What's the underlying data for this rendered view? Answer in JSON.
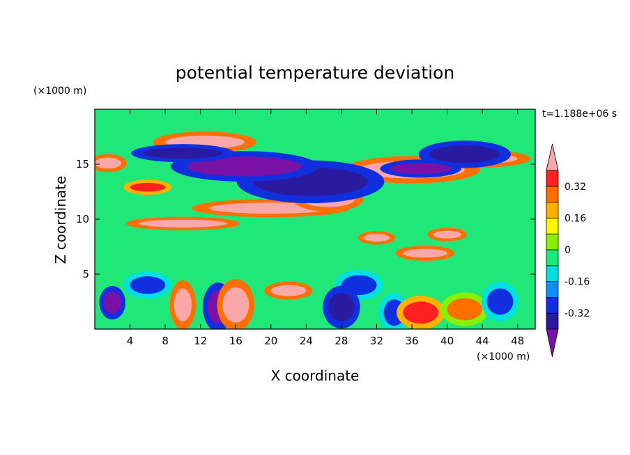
{
  "chart_data": {
    "type": "heatmap",
    "title": "potential temperature deviation",
    "time_label": "t=1.188e+06 s",
    "xlabel": "X coordinate",
    "ylabel": "Z coordinate",
    "x_unit": "(×1000 m)",
    "y_unit": "(×1000 m)",
    "xlim": [
      0,
      50
    ],
    "ylim": [
      0,
      20
    ],
    "x_ticks": [
      "4",
      "8",
      "12",
      "16",
      "20",
      "24",
      "28",
      "32",
      "36",
      "40",
      "44",
      "48"
    ],
    "y_ticks": [
      "5",
      "10",
      "15"
    ],
    "colorbar": {
      "levels": [
        -0.48,
        -0.4,
        -0.32,
        -0.24,
        -0.16,
        -0.08,
        0,
        0.08,
        0.16,
        0.24,
        0.32,
        0.4,
        0.48
      ],
      "colors": [
        "#7b12a8",
        "#2a1aa0",
        "#1030e0",
        "#0a90ff",
        "#00e0e0",
        "#20e878",
        "#88f000",
        "#f8f800",
        "#ffb000",
        "#ff7000",
        "#ff2020",
        "#f8a8a8"
      ],
      "labels": [
        "0.32",
        "0.16",
        "0",
        "-0.16",
        "-0.32"
      ],
      "label_values": [
        0.32,
        0.16,
        0,
        -0.16,
        -0.32
      ]
    },
    "background_color": "#20e878",
    "features": [
      {
        "x": 10,
        "z": 9.6,
        "w": 5.0,
        "h": 0.35,
        "level": 0.48
      },
      {
        "x": 20,
        "z": 11.0,
        "w": 7.0,
        "h": 0.5,
        "level": 0.4
      },
      {
        "x": 26.5,
        "z": 11.8,
        "w": 3.0,
        "h": 0.7,
        "level": 0.48
      },
      {
        "x": 36,
        "z": 14.5,
        "w": 6.0,
        "h": 0.8,
        "level": 0.48
      },
      {
        "x": 43,
        "z": 15.5,
        "w": 5.0,
        "h": 0.5,
        "level": 0.4
      },
      {
        "x": 24.5,
        "z": 13.4,
        "w": 6.5,
        "h": 1.3,
        "level": -0.4
      },
      {
        "x": 17,
        "z": 14.8,
        "w": 6.5,
        "h": 0.9,
        "level": -0.48
      },
      {
        "x": 42,
        "z": 15.9,
        "w": 4.0,
        "h": 0.8,
        "level": -0.4
      },
      {
        "x": 37,
        "z": 14.6,
        "w": 3.5,
        "h": 0.5,
        "level": -0.48
      },
      {
        "x": 12.5,
        "z": 17.0,
        "w": 4.5,
        "h": 0.6,
        "level": 0.48
      },
      {
        "x": 10,
        "z": 16.0,
        "w": 4.5,
        "h": 0.5,
        "level": -0.4
      },
      {
        "x": 1.5,
        "z": 15.1,
        "w": 1.5,
        "h": 0.5,
        "level": 0.48
      },
      {
        "x": 6,
        "z": 12.9,
        "w": 2.0,
        "h": 0.4,
        "level": 0.32
      },
      {
        "x": 40,
        "z": 8.6,
        "w": 1.6,
        "h": 0.35,
        "level": 0.48
      },
      {
        "x": 32,
        "z": 8.3,
        "w": 1.5,
        "h": 0.35,
        "level": 0.48
      },
      {
        "x": 37.5,
        "z": 6.9,
        "w": 2.5,
        "h": 0.4,
        "level": 0.4
      },
      {
        "x": 2,
        "z": 2.4,
        "w": 1.0,
        "h": 1.0,
        "level": -0.48
      },
      {
        "x": 6,
        "z": 4.0,
        "w": 2.0,
        "h": 0.8,
        "level": -0.32
      },
      {
        "x": 14,
        "z": 2.0,
        "w": 1.2,
        "h": 1.5,
        "level": -0.48
      },
      {
        "x": 16,
        "z": 2.2,
        "w": 1.5,
        "h": 1.6,
        "level": 0.4
      },
      {
        "x": 30,
        "z": 4.0,
        "w": 2.0,
        "h": 0.9,
        "level": -0.32
      },
      {
        "x": 28,
        "z": 2.0,
        "w": 1.5,
        "h": 1.3,
        "level": -0.4
      },
      {
        "x": 34,
        "z": 1.5,
        "w": 1.2,
        "h": 1.2,
        "level": -0.32
      },
      {
        "x": 37,
        "z": 1.5,
        "w": 2.0,
        "h": 1.0,
        "level": 0.32
      },
      {
        "x": 42,
        "z": 1.8,
        "w": 2.0,
        "h": 1.0,
        "level": 0.24
      },
      {
        "x": 46,
        "z": 2.5,
        "w": 1.5,
        "h": 1.2,
        "level": -0.32
      },
      {
        "x": 10,
        "z": 2.2,
        "w": 1.0,
        "h": 1.5,
        "level": 0.4
      },
      {
        "x": 22,
        "z": 3.5,
        "w": 2.0,
        "h": 0.5,
        "level": 0.4
      }
    ]
  }
}
